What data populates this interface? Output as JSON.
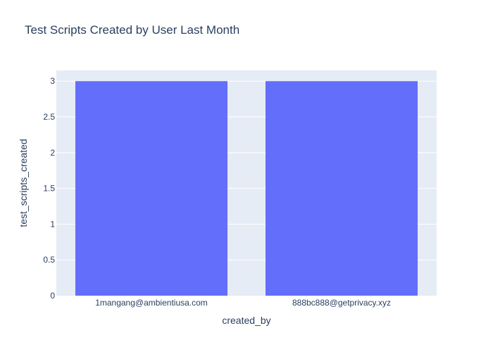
{
  "chart_data": {
    "type": "bar",
    "title": "Test Scripts Created by User Last Month",
    "xlabel": "created_by",
    "ylabel": "test_scripts_created",
    "categories": [
      "1mangang@ambientiusa.com",
      "888bc888@getprivacy.xyz"
    ],
    "values": [
      3,
      3
    ],
    "ylim": [
      0,
      3.15
    ],
    "yticks": [
      0,
      0.5,
      1,
      1.5,
      2,
      2.5,
      3
    ],
    "ytick_labels": [
      "0",
      "0.5",
      "1",
      "1.5",
      "2",
      "2.5",
      "3"
    ],
    "grid": true,
    "bar_color": "#636efa",
    "plot_background": "#e5ecf6"
  }
}
